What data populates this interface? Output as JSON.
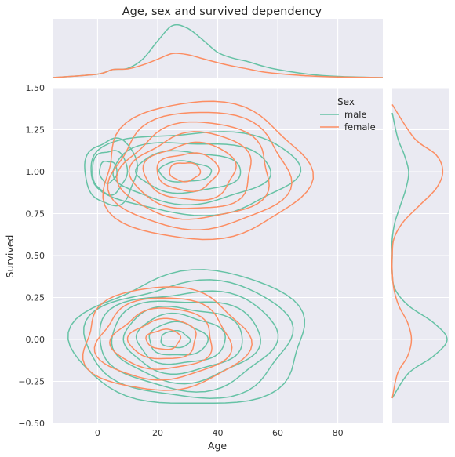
{
  "chart_data": {
    "type": "contour",
    "title": "Age, sex and survived dependency",
    "xlabel": "Age",
    "ylabel": "Survived",
    "xlim": [
      -15,
      95
    ],
    "ylim": [
      -0.5,
      1.5
    ],
    "x_ticks": [
      0,
      20,
      40,
      60,
      80
    ],
    "y_ticks": [
      -0.5,
      -0.25,
      0.0,
      0.25,
      0.5,
      0.75,
      1.0,
      1.25,
      1.5
    ],
    "y_tick_labels": [
      "−0.50",
      "−0.25",
      "0.00",
      "0.25",
      "0.50",
      "0.75",
      "1.00",
      "1.25",
      "1.50"
    ],
    "grid": true,
    "legend": {
      "title": "Sex",
      "position": "top-right",
      "entries": [
        {
          "name": "male",
          "color": "#66c2a5"
        },
        {
          "name": "female",
          "color": "#fc8d62"
        }
      ]
    },
    "series": [
      {
        "name": "male",
        "color": "#66c2a5",
        "clusters": [
          {
            "survived": 0,
            "center_age": 25,
            "age_spread": [
              32,
              45
            ],
            "survived_spread": [
              0.4,
              0.4
            ],
            "levels": 8
          },
          {
            "survived": 1,
            "center_age": 28,
            "age_spread": [
              30,
              38
            ],
            "survived_spread": [
              0.25,
              0.25
            ],
            "levels": 4
          },
          {
            "survived": 1,
            "center_age": 3,
            "age_spread": [
              7,
              10
            ],
            "survived_spread": [
              0.2,
              0.2
            ],
            "levels": 3
          }
        ],
        "age_density": {
          "x": [
            -15,
            0,
            5,
            10,
            15,
            20,
            25,
            30,
            35,
            40,
            45,
            50,
            55,
            60,
            70,
            80,
            95
          ],
          "y": [
            0.0,
            0.06,
            0.14,
            0.16,
            0.32,
            0.64,
            0.91,
            0.86,
            0.66,
            0.44,
            0.34,
            0.28,
            0.2,
            0.14,
            0.06,
            0.02,
            0.0
          ]
        },
        "survived_density": {
          "y": [
            -0.35,
            -0.2,
            -0.1,
            0.0,
            0.1,
            0.2,
            0.3,
            0.4,
            0.5,
            0.6,
            0.7,
            0.8,
            0.9,
            1.0,
            1.1,
            1.2,
            1.35
          ],
          "x": [
            0.0,
            0.3,
            0.75,
            1.0,
            0.75,
            0.3,
            0.05,
            0.0,
            0.0,
            0.0,
            0.05,
            0.15,
            0.25,
            0.3,
            0.22,
            0.1,
            0.0
          ]
        }
      },
      {
        "name": "female",
        "color": "#fc8d62",
        "clusters": [
          {
            "survived": 1,
            "center_age": 28,
            "age_spread": [
              28,
              42
            ],
            "survived_spread": [
              0.4,
              0.4
            ],
            "levels": 7
          },
          {
            "survived": 0,
            "center_age": 22,
            "age_spread": [
              28,
              28
            ],
            "survived_spread": [
              0.3,
              0.3
            ],
            "levels": 5
          }
        ],
        "age_density": {
          "x": [
            -15,
            0,
            5,
            10,
            15,
            20,
            25,
            30,
            35,
            40,
            45,
            50,
            55,
            60,
            70,
            80,
            95
          ],
          "y": [
            0.0,
            0.06,
            0.14,
            0.15,
            0.22,
            0.32,
            0.42,
            0.4,
            0.33,
            0.26,
            0.2,
            0.15,
            0.1,
            0.07,
            0.03,
            0.01,
            0.0
          ]
        },
        "survived_density": {
          "y": [
            -0.35,
            -0.2,
            -0.1,
            0.0,
            0.1,
            0.2,
            0.3,
            0.4,
            0.5,
            0.6,
            0.7,
            0.8,
            0.9,
            1.0,
            1.1,
            1.2,
            1.4
          ],
          "x": [
            0.0,
            0.1,
            0.28,
            0.35,
            0.28,
            0.12,
            0.03,
            0.0,
            0.0,
            0.03,
            0.2,
            0.5,
            0.8,
            0.92,
            0.8,
            0.4,
            0.0
          ]
        }
      }
    ]
  }
}
